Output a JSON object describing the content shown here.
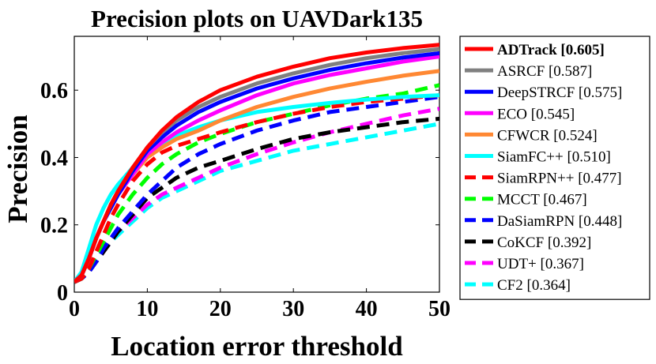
{
  "chart_data": {
    "type": "line",
    "title": "Precision plots on UAVDark135",
    "xlabel": "Location error threshold",
    "ylabel": "Precision",
    "xlim": [
      0,
      50
    ],
    "ylim": [
      0,
      0.76
    ],
    "xticks": [
      0,
      10,
      20,
      30,
      40,
      50
    ],
    "yticks": [
      0,
      0.2,
      0.4,
      0.6
    ],
    "xtick_labels": [
      "0",
      "10",
      "20",
      "30",
      "40",
      "50"
    ],
    "ytick_labels": [
      "0",
      "0.2",
      "0.4",
      "0.6"
    ],
    "grid": false,
    "legend_position": "outside-right",
    "x": [
      0,
      1,
      2,
      3,
      4,
      5,
      6,
      8,
      10,
      12,
      14,
      17,
      20,
      25,
      30,
      35,
      40,
      45,
      50
    ],
    "series": [
      {
        "name": "ADTrack [0.605]",
        "color": "#ff0000",
        "dash": "solid",
        "bold": true,
        "values": [
          0.03,
          0.05,
          0.1,
          0.16,
          0.21,
          0.26,
          0.3,
          0.37,
          0.43,
          0.48,
          0.52,
          0.565,
          0.6,
          0.64,
          0.67,
          0.695,
          0.712,
          0.725,
          0.735
        ]
      },
      {
        "name": "ASRCF [0.587]",
        "color": "#808080",
        "dash": "solid",
        "bold": false,
        "values": [
          0.03,
          0.05,
          0.1,
          0.16,
          0.21,
          0.26,
          0.3,
          0.37,
          0.43,
          0.475,
          0.51,
          0.55,
          0.58,
          0.62,
          0.65,
          0.675,
          0.695,
          0.71,
          0.722
        ]
      },
      {
        "name": "DeepSTRCF [0.575]",
        "color": "#0000ff",
        "dash": "solid",
        "bold": false,
        "values": [
          0.03,
          0.05,
          0.1,
          0.16,
          0.21,
          0.25,
          0.29,
          0.36,
          0.42,
          0.46,
          0.495,
          0.535,
          0.565,
          0.605,
          0.635,
          0.66,
          0.68,
          0.697,
          0.71
        ]
      },
      {
        "name": "ECO [0.545]",
        "color": "#ff00ff",
        "dash": "solid",
        "bold": false,
        "values": [
          0.03,
          0.05,
          0.1,
          0.16,
          0.21,
          0.25,
          0.29,
          0.35,
          0.41,
          0.445,
          0.475,
          0.51,
          0.54,
          0.585,
          0.62,
          0.645,
          0.665,
          0.685,
          0.7
        ]
      },
      {
        "name": "CFWCR [0.524]",
        "color": "#ff8833",
        "dash": "solid",
        "bold": false,
        "values": [
          0.03,
          0.05,
          0.1,
          0.16,
          0.21,
          0.25,
          0.29,
          0.35,
          0.4,
          0.43,
          0.455,
          0.48,
          0.51,
          0.55,
          0.58,
          0.605,
          0.625,
          0.643,
          0.657
        ]
      },
      {
        "name": "SiamFC++ [0.510]",
        "color": "#00ffff",
        "dash": "solid",
        "bold": false,
        "values": [
          0.03,
          0.06,
          0.13,
          0.2,
          0.25,
          0.29,
          0.32,
          0.37,
          0.41,
          0.44,
          0.465,
          0.49,
          0.51,
          0.535,
          0.55,
          0.562,
          0.572,
          0.58,
          0.585
        ]
      },
      {
        "name": "SiamRPN++ [0.477]",
        "color": "#ff0000",
        "dash": "dashed",
        "bold": false,
        "values": [
          0.03,
          0.04,
          0.07,
          0.12,
          0.17,
          0.22,
          0.26,
          0.33,
          0.38,
          0.415,
          0.435,
          0.455,
          0.475,
          0.505,
          0.53,
          0.55,
          0.565,
          0.575,
          0.585
        ]
      },
      {
        "name": "MCCT [0.467]",
        "color": "#00ff00",
        "dash": "dashed",
        "bold": false,
        "values": [
          0.03,
          0.04,
          0.07,
          0.11,
          0.15,
          0.19,
          0.23,
          0.29,
          0.34,
          0.38,
          0.41,
          0.445,
          0.47,
          0.505,
          0.53,
          0.555,
          0.575,
          0.59,
          0.615
        ]
      },
      {
        "name": "DaSiamRPN [0.448]",
        "color": "#0000ff",
        "dash": "dashed",
        "bold": false,
        "values": [
          0.03,
          0.04,
          0.06,
          0.09,
          0.13,
          0.16,
          0.19,
          0.24,
          0.29,
          0.33,
          0.37,
          0.41,
          0.44,
          0.48,
          0.51,
          0.535,
          0.55,
          0.565,
          0.58
        ]
      },
      {
        "name": "CoKCF [0.392]",
        "color": "#000000",
        "dash": "dashed",
        "bold": false,
        "values": [
          0.03,
          0.04,
          0.06,
          0.09,
          0.12,
          0.15,
          0.18,
          0.23,
          0.28,
          0.31,
          0.34,
          0.37,
          0.39,
          0.425,
          0.455,
          0.475,
          0.49,
          0.505,
          0.515
        ]
      },
      {
        "name": "UDT+ [0.367]",
        "color": "#ff00ff",
        "dash": "dashed",
        "bold": false,
        "values": [
          0.03,
          0.04,
          0.06,
          0.09,
          0.12,
          0.15,
          0.18,
          0.22,
          0.26,
          0.29,
          0.31,
          0.34,
          0.37,
          0.41,
          0.445,
          0.475,
          0.5,
          0.525,
          0.545
        ]
      },
      {
        "name": "CF2 [0.364]",
        "color": "#00ffff",
        "dash": "dashed",
        "bold": false,
        "values": [
          0.03,
          0.04,
          0.06,
          0.09,
          0.12,
          0.15,
          0.17,
          0.21,
          0.25,
          0.28,
          0.3,
          0.33,
          0.36,
          0.39,
          0.42,
          0.44,
          0.46,
          0.48,
          0.5
        ]
      }
    ]
  }
}
